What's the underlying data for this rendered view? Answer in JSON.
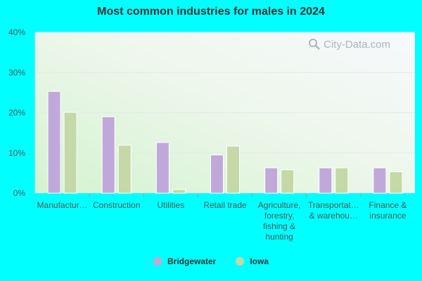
{
  "chart_data": {
    "type": "bar",
    "title": "Most common industries for males in 2024",
    "categories": [
      "Manufactur…",
      "Construction",
      "Utilities",
      "Retail trade",
      "Agriculture, forestry, fishing & hunting",
      "Transportat… & warehou…",
      "Finance & insurance"
    ],
    "category_lines": [
      [
        "Manufactur…"
      ],
      [
        "Construction"
      ],
      [
        "Utilities"
      ],
      [
        "Retail trade"
      ],
      [
        "Agriculture,",
        "forestry,",
        "fishing &",
        "hunting"
      ],
      [
        "Transportat…",
        "& warehou…"
      ],
      [
        "Finance &",
        "insurance"
      ]
    ],
    "series": [
      {
        "name": "Bridgewater",
        "color": "#c0a9da",
        "values": [
          25.3,
          19.0,
          12.6,
          9.5,
          6.3,
          6.3,
          6.3
        ]
      },
      {
        "name": "Iowa",
        "color": "#c5d8a7",
        "values": [
          20.1,
          11.9,
          0.9,
          11.7,
          5.8,
          6.3,
          5.3
        ]
      }
    ],
    "ylim": [
      0,
      40
    ],
    "yticks": [
      0,
      10,
      20,
      30,
      40
    ],
    "ytick_labels": [
      "0%",
      "10%",
      "20%",
      "30%",
      "40%"
    ],
    "xlabel": "",
    "ylabel": "",
    "grid": true,
    "legend_position": "bottom"
  },
  "watermark": "City-Data.com"
}
